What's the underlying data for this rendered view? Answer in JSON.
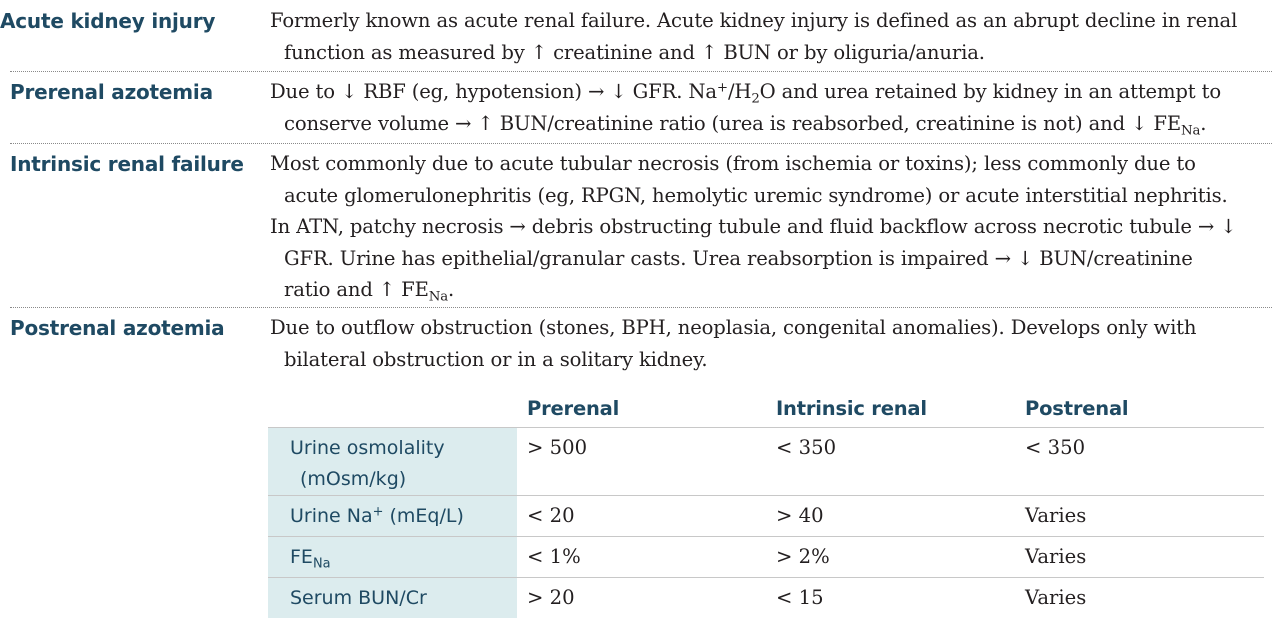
{
  "entries": [
    {
      "term": "Acute kidney injury",
      "paragraphs": [
        "Formerly known as acute renal failure. Acute kidney injury is defined as an abrupt decline in renal function as measured by ↑ creatinine and ↑ BUN or by oliguria/anuria."
      ]
    },
    {
      "term": "Prerenal azotemia",
      "p1_a": "Due to ↓ RBF (eg, hypotension) → ↓ GFR. Na",
      "p1_sup": "+",
      "p1_b": "/H",
      "p1_sub": "2",
      "p1_c": "O and urea retained by kidney in an attempt to conserve volume → ↑ BUN/creatinine ratio (urea is reabsorbed, creatinine is not) and ↓ FE",
      "p1_sub2": "Na",
      "p1_d": "."
    },
    {
      "term": "Intrinsic renal failure",
      "p1": "Most commonly due to acute tubular necrosis (from ischemia or toxins); less commonly due to acute glomerulonephritis (eg, RPGN, hemolytic uremic syndrome) or acute interstitial nephritis.",
      "p2_a": "In ATN, patchy necrosis → debris obstructing tubule and fluid backflow across necrotic tubule → ↓ GFR. Urine has epithelial/granular casts. Urea reabsorption is impaired → ↓ BUN/creatinine ratio and ↑ FE",
      "p2_sub": "Na",
      "p2_b": "."
    },
    {
      "term": "Postrenal azotemia",
      "p1": "Due to outflow obstruction (stones, BPH, neoplasia, congenital anomalies). Develops only with bilateral obstruction or in a solitary kidney."
    }
  ],
  "table": {
    "headers": [
      "Prerenal",
      "Intrinsic renal",
      "Postrenal"
    ],
    "rows": [
      {
        "label_a": "Urine osmolality",
        "label_b": "(mOsm/kg)",
        "values": [
          "> 500",
          "< 350",
          "< 350"
        ]
      },
      {
        "label_a": "Urine Na",
        "label_sup": "+",
        "label_b": " (mEq/L)",
        "values": [
          "< 20",
          "> 40",
          "Varies"
        ]
      },
      {
        "label_a": "FE",
        "label_sub": "Na",
        "values": [
          "< 1%",
          "> 2%",
          "Varies"
        ]
      },
      {
        "label_a": "Serum BUN/Cr",
        "values": [
          "> 20",
          "< 15",
          "Varies"
        ]
      }
    ]
  },
  "colors": {
    "heading": "#1f4a63",
    "row_header_bg": "#dcecee",
    "text": "#231f20"
  }
}
